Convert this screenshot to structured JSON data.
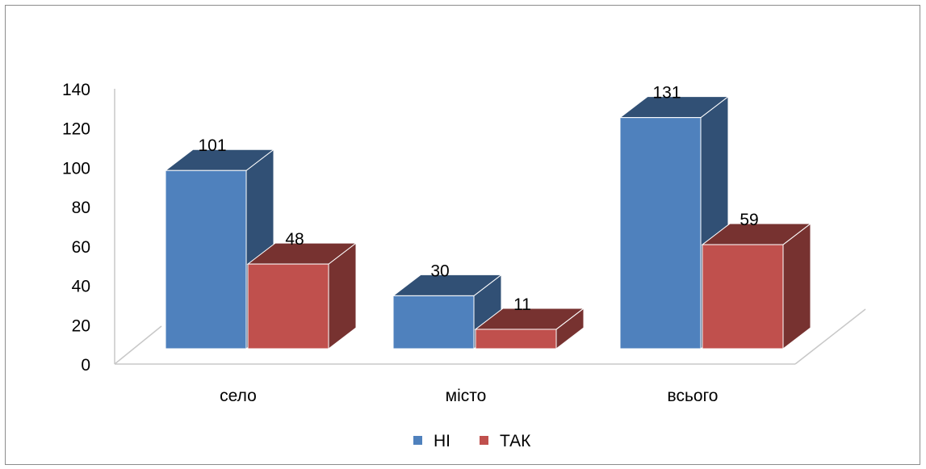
{
  "chart_data": {
    "type": "bar",
    "categories": [
      "село",
      "місто",
      "всього"
    ],
    "series": [
      {
        "name": "НІ",
        "values": [
          101,
          30,
          131
        ],
        "color": "#4F81BD"
      },
      {
        "name": "ТАК",
        "values": [
          48,
          11,
          59
        ],
        "color": "#C0504D"
      }
    ],
    "ylim": [
      0,
      140
    ],
    "yticks": [
      0,
      20,
      40,
      60,
      80,
      100,
      120,
      140
    ],
    "legend_position": "bottom",
    "style": "3d-clustered-column"
  }
}
